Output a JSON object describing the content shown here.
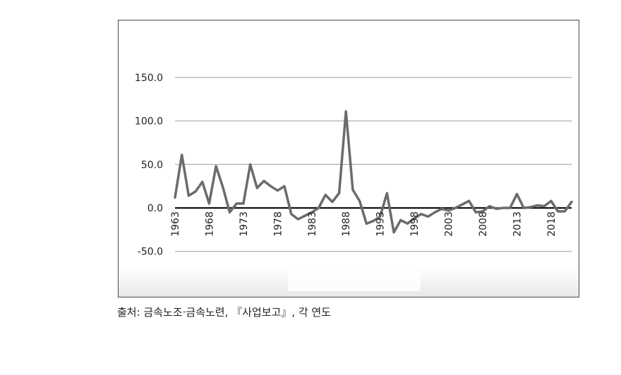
{
  "chart_data": {
    "type": "line",
    "title": "",
    "xlabel": "",
    "ylabel": "",
    "ylim": [
      -50,
      150
    ],
    "y_ticks": [
      "150.0",
      "100.0",
      "50.0",
      "0.0",
      "-50.0"
    ],
    "y_tick_values": [
      150,
      100,
      50,
      0,
      -50
    ],
    "x_tick_labels": [
      "1963",
      "1968",
      "1973",
      "1978",
      "1983",
      "1988",
      "1993",
      "1998",
      "2003",
      "2008",
      "2013",
      "2018"
    ],
    "grid": "horizontal",
    "zero_line": true,
    "line_color": "#6b6b6b",
    "series": [
      {
        "x": [
          1963,
          1964,
          1965,
          1966,
          1967,
          1968,
          1969,
          1970,
          1971,
          1972,
          1973,
          1974,
          1975,
          1976,
          1977,
          1978,
          1979,
          1980,
          1981,
          1982,
          1983,
          1984,
          1985,
          1986,
          1987,
          1988,
          1989,
          1990,
          1991,
          1992,
          1993,
          1994,
          1995,
          1996,
          1997,
          1998,
          1999,
          2000,
          2001,
          2002,
          2003,
          2004,
          2005,
          2006,
          2007,
          2008,
          2009,
          2010,
          2011,
          2012,
          2013,
          2014,
          2015,
          2016,
          2017,
          2018,
          2019,
          2020,
          2021
        ],
        "values": [
          12,
          61,
          14,
          19,
          30,
          5,
          48,
          24,
          -5,
          5,
          5,
          50,
          23,
          31,
          25,
          20,
          25,
          -7,
          -13,
          -9,
          -5,
          0,
          15,
          7,
          17,
          111,
          21,
          8,
          -18,
          -15,
          -10,
          17,
          -28,
          -14,
          -18,
          -12,
          -7,
          -10,
          -5,
          -1,
          -3,
          0,
          4,
          8,
          -5,
          -4,
          2,
          -1,
          0,
          0,
          16,
          0,
          1,
          3,
          2,
          8,
          -4,
          -4,
          7
        ]
      }
    ]
  },
  "source_note": "출처: 금속노조·금속노련, 『사업보고』, 각 연도"
}
